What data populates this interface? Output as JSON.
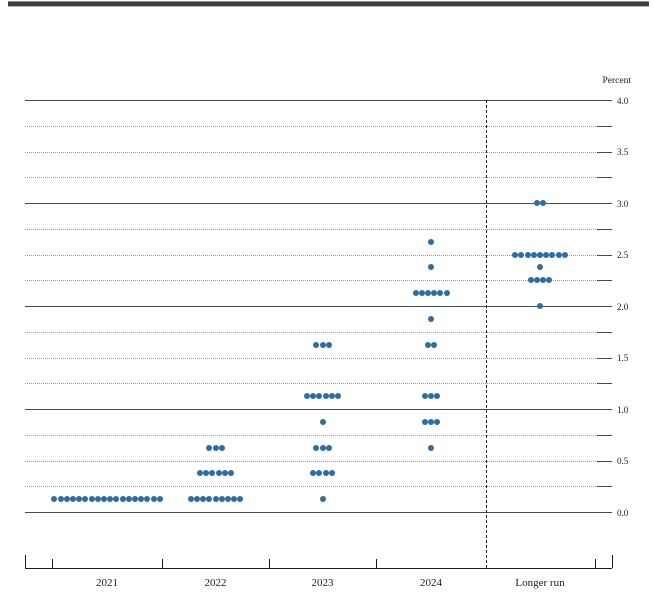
{
  "header": {
    "percent_label": "Percent"
  },
  "chart_data": {
    "type": "scatter",
    "title": "",
    "ylabel": "Percent",
    "xlabel": "",
    "legend": null,
    "grid": "dotted quarter-point lines, solid integer lines",
    "categories": [
      "2021",
      "2022",
      "2023",
      "2024",
      "Longer run"
    ],
    "separator_after_category": "2024",
    "y_axis": {
      "min": 0.0,
      "max": 4.0,
      "grid_step": 0.25,
      "tick_labels": [
        {
          "value": 4.0,
          "label": "4.0"
        },
        {
          "value": 3.5,
          "label": "3.5"
        },
        {
          "value": 3.0,
          "label": "3.0"
        },
        {
          "value": 2.5,
          "label": "2.5"
        },
        {
          "value": 2.0,
          "label": "2.0"
        },
        {
          "value": 1.5,
          "label": "1.5"
        },
        {
          "value": 1.0,
          "label": "1.0"
        },
        {
          "value": 0.5,
          "label": "0.5"
        },
        {
          "value": 0.0,
          "label": "0.0"
        }
      ]
    },
    "dots": [
      {
        "category": "2021",
        "values": [
          {
            "rate": 0.125,
            "count": 18
          }
        ]
      },
      {
        "category": "2022",
        "values": [
          {
            "rate": 0.125,
            "count": 9
          },
          {
            "rate": 0.375,
            "count": 6
          },
          {
            "rate": 0.625,
            "count": 3
          }
        ]
      },
      {
        "category": "2023",
        "values": [
          {
            "rate": 0.125,
            "count": 1
          },
          {
            "rate": 0.375,
            "count": 4
          },
          {
            "rate": 0.625,
            "count": 3
          },
          {
            "rate": 0.875,
            "count": 1
          },
          {
            "rate": 1.125,
            "count": 6
          },
          {
            "rate": 1.625,
            "count": 3
          }
        ]
      },
      {
        "category": "2024",
        "values": [
          {
            "rate": 0.625,
            "count": 1
          },
          {
            "rate": 0.875,
            "count": 3
          },
          {
            "rate": 1.125,
            "count": 3
          },
          {
            "rate": 1.625,
            "count": 2
          },
          {
            "rate": 1.875,
            "count": 1
          },
          {
            "rate": 2.125,
            "count": 6
          },
          {
            "rate": 2.375,
            "count": 1
          },
          {
            "rate": 2.625,
            "count": 1
          }
        ]
      },
      {
        "category": "Longer run",
        "values": [
          {
            "rate": 2.0,
            "count": 1
          },
          {
            "rate": 2.25,
            "count": 4
          },
          {
            "rate": 2.375,
            "count": 1
          },
          {
            "rate": 2.5,
            "count": 9
          },
          {
            "rate": 3.0,
            "count": 2
          }
        ]
      }
    ],
    "colors": {
      "dot": "#2e6da4",
      "solid_grid": "#4a4a4a",
      "dotted_grid": "#9a9a9a",
      "axis": "#1a1a1a",
      "separator": "#222222",
      "top_rule": "#3d3d3d"
    }
  }
}
